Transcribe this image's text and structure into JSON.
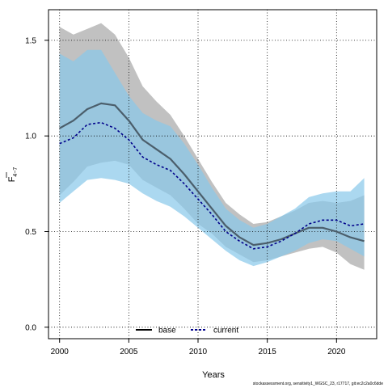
{
  "chart_data": {
    "type": "line",
    "x": [
      2000,
      2001,
      2002,
      2003,
      2004,
      2005,
      2006,
      2007,
      2008,
      2009,
      2010,
      2011,
      2012,
      2013,
      2014,
      2015,
      2016,
      2017,
      2018,
      2019,
      2020,
      2021,
      2022
    ],
    "xlim": [
      1999.2,
      2022.9
    ],
    "ylim": [
      -0.06,
      1.66
    ],
    "xticks": [
      "2000",
      "2005",
      "2010",
      "2015",
      "2020"
    ],
    "yticks": [
      "0.0",
      "0.5",
      "1.0",
      "1.5"
    ],
    "xlabel": "Years",
    "ylabel_main": "F",
    "ylabel_sub": "4−7",
    "grid": true,
    "legend_position": "bottom",
    "series": [
      {
        "name": "base",
        "color": "#4b5e6b",
        "band_color": "#a6a6a6",
        "values": [
          1.04,
          1.08,
          1.14,
          1.17,
          1.16,
          1.08,
          0.98,
          0.93,
          0.88,
          0.8,
          0.71,
          0.62,
          0.53,
          0.47,
          0.43,
          0.44,
          0.46,
          0.49,
          0.52,
          0.52,
          0.5,
          0.47,
          0.45
        ],
        "lower": [
          0.69,
          0.76,
          0.84,
          0.86,
          0.87,
          0.85,
          0.77,
          0.73,
          0.69,
          0.62,
          0.54,
          0.49,
          0.42,
          0.38,
          0.34,
          0.35,
          0.37,
          0.39,
          0.41,
          0.42,
          0.39,
          0.33,
          0.3
        ],
        "upper": [
          1.57,
          1.53,
          1.56,
          1.59,
          1.53,
          1.41,
          1.26,
          1.18,
          1.11,
          1.0,
          0.88,
          0.76,
          0.65,
          0.59,
          0.54,
          0.55,
          0.58,
          0.61,
          0.65,
          0.66,
          0.65,
          0.66,
          0.69
        ]
      },
      {
        "name": "current",
        "color": "#00008b",
        "band_color": "#87c8ea",
        "values": [
          0.96,
          0.99,
          1.06,
          1.07,
          1.04,
          0.98,
          0.89,
          0.85,
          0.82,
          0.75,
          0.67,
          0.59,
          0.5,
          0.45,
          0.41,
          0.42,
          0.45,
          0.49,
          0.54,
          0.56,
          0.56,
          0.53,
          0.54
        ],
        "lower": [
          0.65,
          0.71,
          0.77,
          0.78,
          0.77,
          0.75,
          0.7,
          0.66,
          0.63,
          0.58,
          0.52,
          0.46,
          0.4,
          0.35,
          0.32,
          0.34,
          0.37,
          0.4,
          0.44,
          0.46,
          0.45,
          0.41,
          0.37
        ],
        "upper": [
          1.43,
          1.39,
          1.45,
          1.45,
          1.33,
          1.21,
          1.12,
          1.08,
          1.05,
          0.96,
          0.85,
          0.73,
          0.62,
          0.56,
          0.52,
          0.54,
          0.58,
          0.62,
          0.68,
          0.7,
          0.71,
          0.71,
          0.78
        ]
      }
    ]
  },
  "footer_text": "stockassessment.org, sensitivity1_WGSC_23, r17717, git:ec2c2a0c6dde"
}
